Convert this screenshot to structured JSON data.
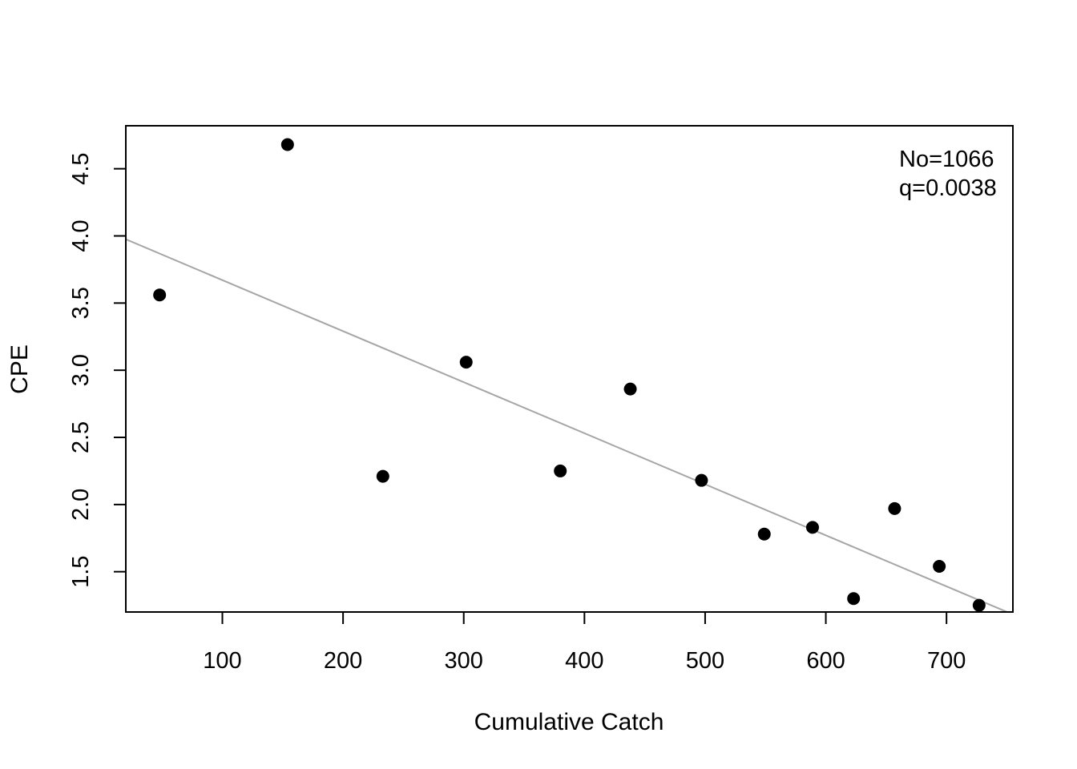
{
  "chart_data": {
    "type": "scatter",
    "title": "",
    "xlabel": "Cumulative Catch",
    "ylabel": "CPE",
    "xlim": [
      20,
      755
    ],
    "ylim": [
      1.2,
      4.82
    ],
    "x_ticks": [
      100,
      200,
      300,
      400,
      500,
      600,
      700
    ],
    "y_ticks": [
      1.5,
      2.0,
      2.5,
      3.0,
      3.5,
      4.0,
      4.5
    ],
    "x_tick_labels": [
      "100",
      "200",
      "300",
      "400",
      "500",
      "600",
      "700"
    ],
    "y_tick_labels": [
      "1.5",
      "2.0",
      "2.5",
      "3.0",
      "3.5",
      "4.0",
      "4.5"
    ],
    "grid": false,
    "series": [
      {
        "type": "scatter",
        "color": "#000000",
        "points": [
          {
            "x": 48,
            "y": 3.56
          },
          {
            "x": 154,
            "y": 4.68
          },
          {
            "x": 233,
            "y": 2.21
          },
          {
            "x": 302,
            "y": 3.06
          },
          {
            "x": 380,
            "y": 2.25
          },
          {
            "x": 438,
            "y": 2.86
          },
          {
            "x": 497,
            "y": 2.18
          },
          {
            "x": 549,
            "y": 1.78
          },
          {
            "x": 589,
            "y": 1.83
          },
          {
            "x": 623,
            "y": 1.3
          },
          {
            "x": 657,
            "y": 1.97
          },
          {
            "x": 694,
            "y": 1.54
          },
          {
            "x": 727,
            "y": 1.25
          }
        ]
      },
      {
        "type": "line",
        "color": "#a6a6a6",
        "intercept": 4.0508,
        "slope": -0.0038
      }
    ],
    "annotations": [
      "No=1066",
      "q=0.0038"
    ],
    "annotation_position": "top-right"
  }
}
